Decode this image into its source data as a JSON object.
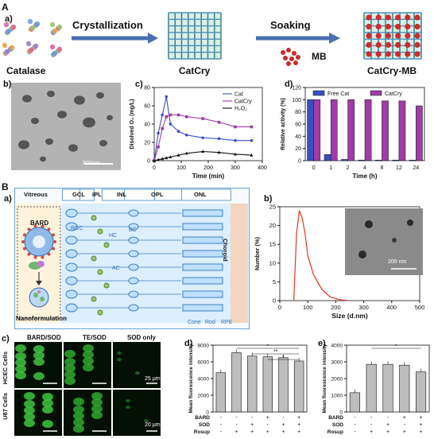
{
  "panel_A": {
    "label": "A",
    "sub_a": "a)",
    "arrow1": "Crystallization",
    "arrow2": "Soaking",
    "cat_label": "Catalase",
    "catcry_label": "CatCry",
    "catcrymb_label": "CatCry-MB",
    "mb_label": "MB",
    "sub_b": "b)",
    "tem_scale": "500nm",
    "sub_c": "c)",
    "sub_d": "d)"
  },
  "panel_B": {
    "label": "B",
    "sub_a": "a)",
    "layers": [
      "Vitreous",
      "GCL",
      "IPL",
      "INL",
      "OPL",
      "ONL"
    ],
    "bard": "BARD",
    "nano": "Nanoformulation",
    "cells": [
      "RGC",
      "HC",
      "BC",
      "AC"
    ],
    "bottom": [
      "Cone",
      "Rod",
      "RPE"
    ],
    "choroid": "Choroid",
    "sub_b": "b)",
    "tem_scale": "200 nm"
  },
  "panel_C": {
    "label": "c)",
    "cols": [
      "BARD/SOD",
      "TE/SOD",
      "SOD only"
    ],
    "rows": [
      "HCEC Cells",
      "U87 Cells"
    ],
    "scale1": "25 μm",
    "scale2": "20 μm",
    "sub_d": "d)",
    "sub_e": "e)",
    "cond_labels": [
      "BARD",
      "SOD",
      "Rosup"
    ]
  },
  "colors": {
    "cat": "#3a4fc2",
    "catcry": "#a03ca8",
    "h2o2": "#111111",
    "dls": "#e8321e",
    "bar_gray": "#bdbdbd"
  },
  "chart_data": [
    {
      "id": "A-c",
      "type": "line",
      "title": "",
      "xlabel": "Time (min)",
      "ylabel": "Disolved O₂ (mg/L)",
      "xlim": [
        0,
        400
      ],
      "ylim": [
        0,
        80
      ],
      "xticks": [
        0,
        100,
        200,
        300,
        400
      ],
      "yticks": [
        0,
        20,
        40,
        60,
        80
      ],
      "legend": "top-right",
      "series": [
        {
          "name": "Cat",
          "x": [
            0,
            15,
            30,
            45,
            60,
            90,
            120,
            180,
            240,
            300,
            360
          ],
          "y": [
            0,
            30,
            50,
            70,
            40,
            32,
            28,
            25,
            24,
            22,
            22
          ]
        },
        {
          "name": "CatCry",
          "x": [
            0,
            15,
            30,
            45,
            60,
            90,
            120,
            180,
            240,
            300,
            360
          ],
          "y": [
            0,
            15,
            35,
            48,
            50,
            50,
            48,
            46,
            42,
            37,
            37
          ]
        },
        {
          "name": "H₂O₂",
          "x": [
            0,
            15,
            30,
            45,
            60,
            90,
            120,
            180,
            240,
            300,
            360
          ],
          "y": [
            0,
            1,
            2,
            3,
            4,
            6,
            8,
            10,
            9,
            7,
            6
          ]
        }
      ]
    },
    {
      "id": "A-d",
      "type": "bar",
      "xlabel": "Time (h)",
      "ylabel": "Relative activity (%)",
      "ylim": [
        0,
        120
      ],
      "yticks": [
        0,
        20,
        40,
        60,
        80,
        100,
        120
      ],
      "categories": [
        "0",
        "1",
        "2",
        "4",
        "8",
        "12",
        "24"
      ],
      "legend": "top",
      "series": [
        {
          "name": "Free Cat",
          "values": [
            100,
            10,
            2,
            1,
            1,
            1,
            1
          ]
        },
        {
          "name": "CatCry",
          "values": [
            100,
            100,
            100,
            100,
            98,
            98,
            90
          ]
        }
      ]
    },
    {
      "id": "B-b",
      "type": "line",
      "xlabel": "Size (d.nm)",
      "ylabel": "Number (%)",
      "xlim": [
        0,
        500
      ],
      "ylim": [
        0,
        25
      ],
      "xticks": [
        0,
        100,
        200,
        300,
        400,
        500
      ],
      "yticks": [
        0,
        5,
        10,
        15,
        20,
        25
      ],
      "series": [
        {
          "name": "",
          "x": [
            50,
            60,
            70,
            80,
            90,
            100,
            120,
            150,
            180,
            210,
            240
          ],
          "y": [
            0,
            18,
            24,
            22,
            18,
            12,
            7,
            3,
            1,
            0.3,
            0
          ]
        }
      ]
    },
    {
      "id": "C-d",
      "type": "bar",
      "ylabel": "Mean fluorescence intensity",
      "ylim": [
        0,
        8000
      ],
      "yticks": [
        0,
        2000,
        4000,
        6000,
        8000
      ],
      "categories": [
        "1",
        "2",
        "3",
        "4",
        "5",
        "6"
      ],
      "conditions": {
        "BARD": [
          "-",
          "-",
          "-",
          "+",
          "-",
          "+"
        ],
        "SOD": [
          "-",
          "-",
          "+",
          "-",
          "+",
          "+"
        ],
        "Rosup": [
          "-",
          "+",
          "+",
          "+",
          "+",
          "+"
        ]
      },
      "values": [
        4700,
        7100,
        6700,
        6600,
        6500,
        6100
      ],
      "annotations": [
        "*",
        "**",
        "*"
      ]
    },
    {
      "id": "C-e",
      "type": "bar",
      "ylabel": "Mean fluorescence intensity",
      "ylim": [
        0,
        4000
      ],
      "yticks": [
        0,
        1000,
        2000,
        3000,
        4000
      ],
      "categories": [
        "1",
        "2",
        "3",
        "4",
        "5"
      ],
      "conditions": {
        "BARD": [
          "-",
          "-",
          "-",
          "+",
          "+"
        ],
        "SOD": [
          "-",
          "-",
          "+",
          "-",
          "+"
        ],
        "Rosup": [
          "-",
          "+",
          "+",
          "+",
          "+"
        ]
      },
      "values": [
        1150,
        2850,
        2850,
        2800,
        2400
      ],
      "annotations": [
        "*"
      ]
    }
  ]
}
